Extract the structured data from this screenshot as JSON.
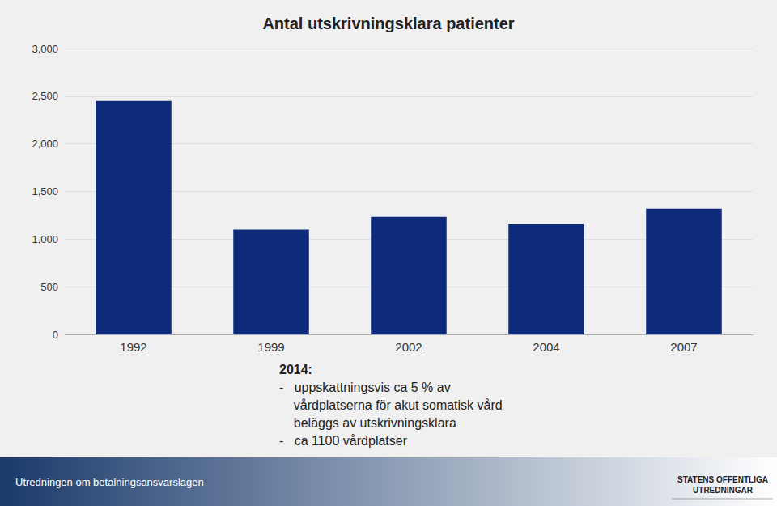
{
  "chart_data": {
    "type": "bar",
    "title": "Antal utskrivningsklara patienter",
    "categories": [
      "1992",
      "1999",
      "2002",
      "2004",
      "2007"
    ],
    "values": [
      2450,
      1100,
      1235,
      1155,
      1320
    ],
    "color": "#0d2b7a",
    "ylim": [
      0,
      3000
    ],
    "yticks": [
      0,
      500,
      1000,
      1500,
      2000,
      2500,
      3000
    ],
    "grid": true,
    "annotations": [
      "2014:",
      "-   uppskattningsvis ca 5 % av",
      "    vårdplatserna för akut somatisk vård",
      "    beläggs av utskrivningsklara",
      "-   ca 1100 vårdplatser",
      "Utredningen om betalningsansvarslagen",
      "STATENS OFFENTLIGA\nUTREDNINGAR"
    ]
  }
}
